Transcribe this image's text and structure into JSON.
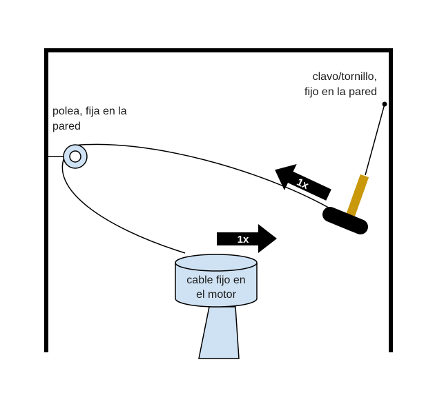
{
  "labels": {
    "pulley": [
      "polea, fija en la",
      "pared"
    ],
    "nail": [
      "clavo/tornillo,",
      "fijo en la pared"
    ],
    "motor": [
      "cable fijo en",
      "el motor"
    ]
  },
  "arrows": {
    "upper": "1x",
    "lower": "1x"
  },
  "colors": {
    "frame": "#000000",
    "motor_fill": "#cfe2f3",
    "spring": "#c9980b",
    "pulley_fill": "#cfe2f3",
    "arrow": "#000000"
  }
}
